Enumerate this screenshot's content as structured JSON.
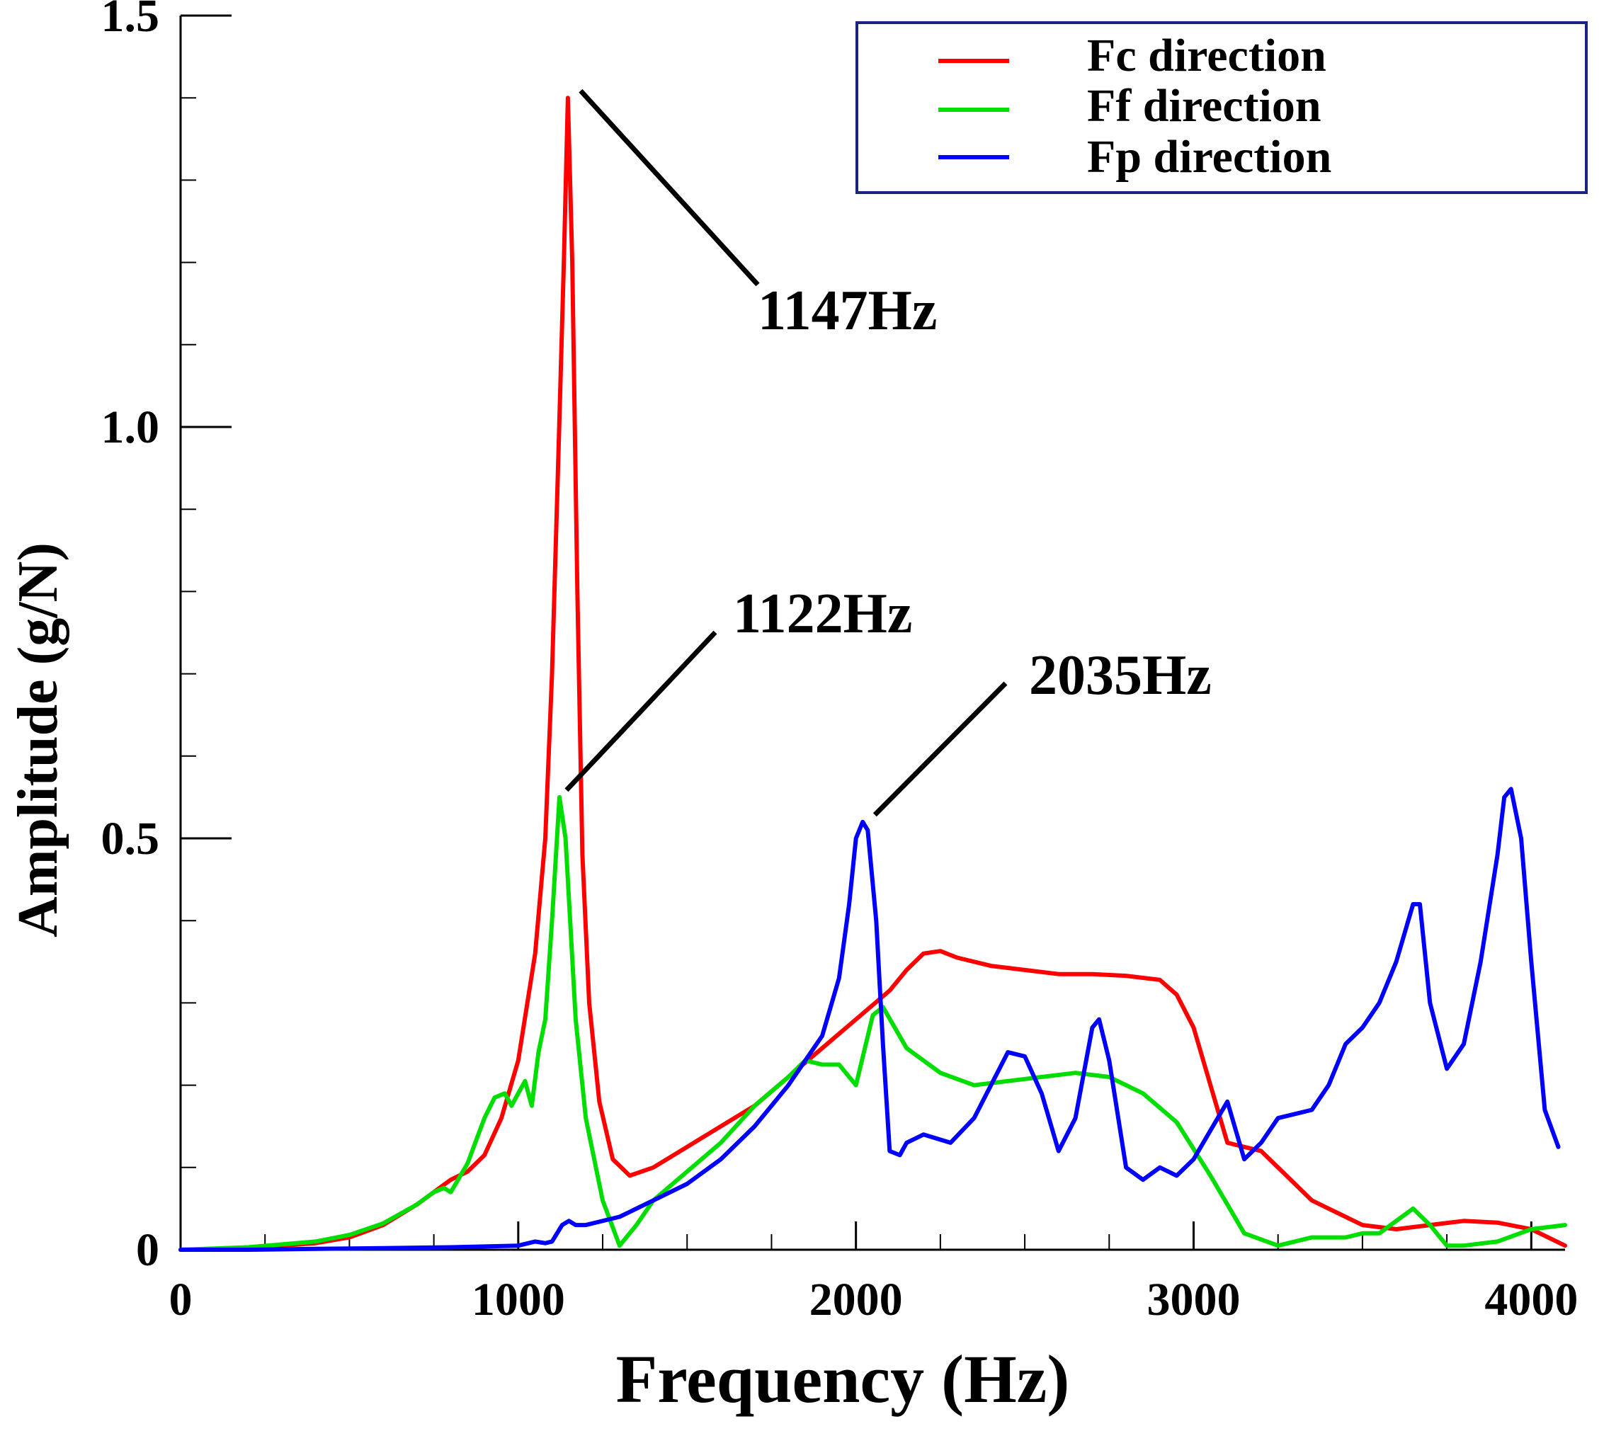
{
  "chart_data": {
    "type": "line",
    "xlabel": "Frequency (Hz)",
    "ylabel": "Amplitude (g/N)",
    "xlim": [
      0,
      4100
    ],
    "ylim": [
      0,
      1.5
    ],
    "x_ticks": [
      0,
      1000,
      2000,
      3000,
      4000
    ],
    "x_tick_labels": [
      "0",
      "1000",
      "2000",
      "3000",
      "4000"
    ],
    "y_ticks": [
      0,
      0.5,
      1.0,
      1.5
    ],
    "y_tick_labels": [
      "0",
      "0.5",
      "1.0",
      "1.5"
    ],
    "grid": false,
    "legend_position": "top-right",
    "series": [
      {
        "name": "Fc direction",
        "color": "#ff0000",
        "x": [
          0,
          200,
          400,
          500,
          600,
          700,
          800,
          850,
          900,
          950,
          1000,
          1050,
          1080,
          1100,
          1120,
          1135,
          1147,
          1160,
          1175,
          1190,
          1210,
          1240,
          1280,
          1330,
          1400,
          1500,
          1600,
          1700,
          1800,
          1900,
          2000,
          2100,
          2150,
          2200,
          2250,
          2300,
          2400,
          2500,
          2600,
          2700,
          2800,
          2900,
          2950,
          3000,
          3050,
          3100,
          3150,
          3200,
          3250,
          3300,
          3350,
          3400,
          3500,
          3600,
          3700,
          3800,
          3900,
          4000,
          4100
        ],
        "y": [
          0.0,
          0.002,
          0.008,
          0.015,
          0.03,
          0.055,
          0.085,
          0.095,
          0.115,
          0.16,
          0.23,
          0.36,
          0.5,
          0.7,
          0.98,
          1.2,
          1.4,
          1.2,
          0.8,
          0.48,
          0.3,
          0.18,
          0.11,
          0.09,
          0.1,
          0.125,
          0.15,
          0.175,
          0.21,
          0.245,
          0.28,
          0.315,
          0.34,
          0.36,
          0.363,
          0.355,
          0.345,
          0.34,
          0.335,
          0.335,
          0.333,
          0.328,
          0.31,
          0.27,
          0.2,
          0.13,
          0.125,
          0.12,
          0.1,
          0.08,
          0.06,
          0.05,
          0.03,
          0.025,
          0.03,
          0.035,
          0.033,
          0.025,
          0.005
        ]
      },
      {
        "name": "Ff direction",
        "color": "#00dd00",
        "x": [
          0,
          200,
          400,
          500,
          600,
          700,
          750,
          780,
          800,
          850,
          900,
          930,
          960,
          980,
          1000,
          1020,
          1040,
          1060,
          1080,
          1100,
          1122,
          1140,
          1170,
          1200,
          1250,
          1300,
          1350,
          1400,
          1500,
          1600,
          1700,
          1800,
          1850,
          1900,
          1950,
          2000,
          2050,
          2080,
          2150,
          2250,
          2350,
          2450,
          2550,
          2650,
          2750,
          2850,
          2950,
          3050,
          3150,
          3250,
          3350,
          3450,
          3500,
          3550,
          3600,
          3650,
          3700,
          3750,
          3800,
          3900,
          4000,
          4100
        ],
        "y": [
          0.0,
          0.003,
          0.01,
          0.018,
          0.032,
          0.055,
          0.07,
          0.075,
          0.07,
          0.105,
          0.16,
          0.185,
          0.19,
          0.175,
          0.19,
          0.205,
          0.175,
          0.24,
          0.28,
          0.4,
          0.55,
          0.5,
          0.28,
          0.16,
          0.06,
          0.005,
          0.03,
          0.06,
          0.095,
          0.13,
          0.175,
          0.21,
          0.23,
          0.225,
          0.225,
          0.2,
          0.285,
          0.295,
          0.245,
          0.215,
          0.2,
          0.205,
          0.21,
          0.215,
          0.21,
          0.19,
          0.155,
          0.09,
          0.02,
          0.005,
          0.015,
          0.015,
          0.02,
          0.02,
          0.035,
          0.05,
          0.03,
          0.005,
          0.005,
          0.01,
          0.025,
          0.03
        ]
      },
      {
        "name": "Fp direction",
        "color": "#0000ff",
        "x": [
          0,
          200,
          400,
          600,
          800,
          1000,
          1050,
          1080,
          1100,
          1130,
          1150,
          1170,
          1200,
          1300,
          1400,
          1500,
          1600,
          1700,
          1800,
          1900,
          1950,
          1980,
          2000,
          2020,
          2035,
          2060,
          2080,
          2100,
          2130,
          2150,
          2200,
          2280,
          2350,
          2450,
          2500,
          2550,
          2600,
          2650,
          2700,
          2720,
          2750,
          2800,
          2850,
          2900,
          2950,
          3000,
          3050,
          3100,
          3150,
          3200,
          3250,
          3300,
          3350,
          3400,
          3450,
          3500,
          3550,
          3600,
          3650,
          3670,
          3700,
          3750,
          3800,
          3850,
          3900,
          3920,
          3940,
          3970,
          4000,
          4040,
          4080
        ],
        "y": [
          0.0,
          0.0,
          0.001,
          0.002,
          0.003,
          0.005,
          0.01,
          0.008,
          0.01,
          0.03,
          0.035,
          0.03,
          0.03,
          0.04,
          0.06,
          0.08,
          0.11,
          0.15,
          0.2,
          0.26,
          0.33,
          0.42,
          0.5,
          0.52,
          0.51,
          0.4,
          0.25,
          0.12,
          0.115,
          0.13,
          0.14,
          0.13,
          0.16,
          0.24,
          0.235,
          0.19,
          0.12,
          0.16,
          0.27,
          0.28,
          0.23,
          0.1,
          0.085,
          0.1,
          0.09,
          0.11,
          0.145,
          0.18,
          0.11,
          0.13,
          0.16,
          0.165,
          0.17,
          0.2,
          0.25,
          0.27,
          0.3,
          0.35,
          0.42,
          0.42,
          0.3,
          0.22,
          0.25,
          0.35,
          0.48,
          0.55,
          0.56,
          0.5,
          0.35,
          0.17,
          0.125
        ]
      }
    ],
    "annotations": [
      {
        "label": "1147Hz",
        "x": 1147,
        "y": 1.4
      },
      {
        "label": "1122Hz",
        "x": 1122,
        "y": 0.55
      },
      {
        "label": "2035Hz",
        "x": 2035,
        "y": 0.52
      }
    ]
  }
}
